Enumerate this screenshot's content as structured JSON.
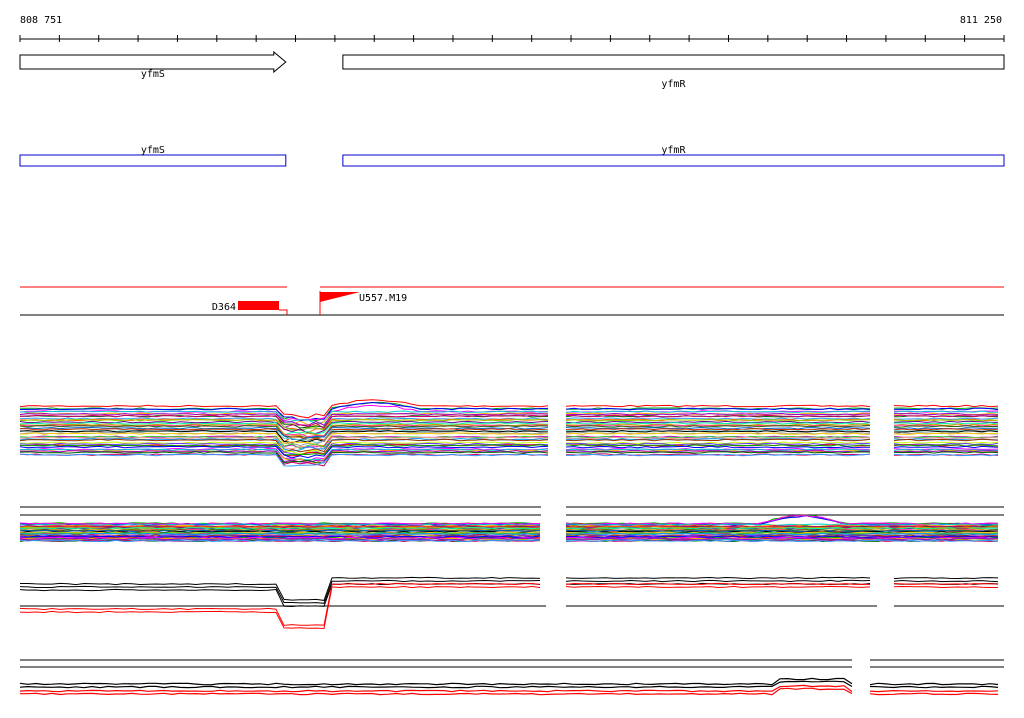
{
  "ruler": {
    "start_label": "808 751",
    "end_label": "811 250",
    "start_bp": 808751,
    "end_bp": 811250
  },
  "genes": [
    {
      "name": "yfmS",
      "start_bp": 808751,
      "end_bp": 809426,
      "strand": "+"
    },
    {
      "name": "yfmR",
      "start_bp": 809571,
      "end_bp": 811250,
      "strand": "+"
    }
  ],
  "annotations": [
    {
      "name": "D364",
      "start_bp": 809303,
      "end_bp": 809400,
      "color": "#ff0000",
      "type": "block"
    },
    {
      "name": "U557.M19",
      "start_bp": 809503,
      "end_bp": 809600,
      "color": "#ff0000",
      "type": "flag"
    }
  ],
  "colors": {
    "ruler": "#000000",
    "gene_box_top": "#000000",
    "gene_box_bottom": "#0000cc",
    "annotation": "#ff0000",
    "summary_primary": "#000000",
    "summary_secondary": "#ff0000"
  }
}
